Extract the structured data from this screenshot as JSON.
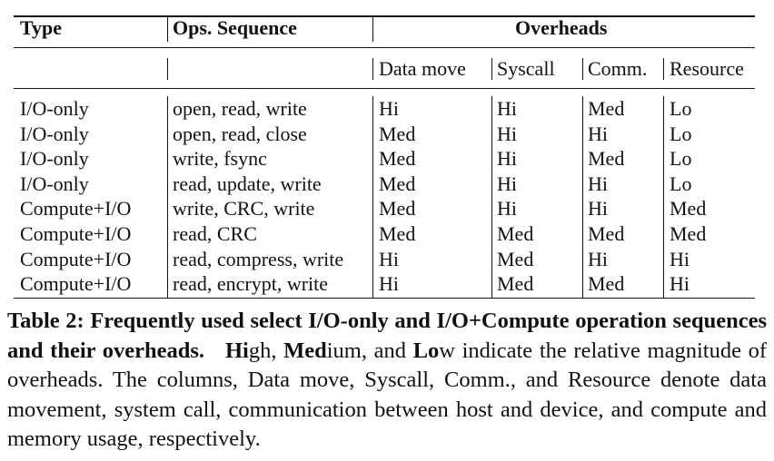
{
  "table": {
    "headers": {
      "type": "Type",
      "ops": "Ops. Sequence",
      "overheads": "Overheads"
    },
    "subheaders": [
      "Data move",
      "Syscall",
      "Comm.",
      "Resource"
    ],
    "rows": [
      {
        "type": "I/O-only",
        "ops": "open, read, write",
        "data_move": "Hi",
        "syscall": "Hi",
        "comm": "Med",
        "resource": "Lo"
      },
      {
        "type": "I/O-only",
        "ops": "open, read, close",
        "data_move": "Med",
        "syscall": "Hi",
        "comm": "Hi",
        "resource": "Lo"
      },
      {
        "type": "I/O-only",
        "ops": "write, fsync",
        "data_move": "Med",
        "syscall": "Hi",
        "comm": "Med",
        "resource": "Lo"
      },
      {
        "type": "I/O-only",
        "ops": "read, update, write",
        "data_move": "Med",
        "syscall": "Hi",
        "comm": "Hi",
        "resource": "Lo"
      },
      {
        "type": "Compute+I/O",
        "ops": "write, CRC, write",
        "data_move": "Med",
        "syscall": "Hi",
        "comm": "Hi",
        "resource": "Med"
      },
      {
        "type": "Compute+I/O",
        "ops": "read, CRC",
        "data_move": "Med",
        "syscall": "Med",
        "comm": "Med",
        "resource": "Med"
      },
      {
        "type": "Compute+I/O",
        "ops": "read, compress, write",
        "data_move": "Hi",
        "syscall": "Med",
        "comm": "Hi",
        "resource": "Hi"
      },
      {
        "type": "Compute+I/O",
        "ops": "read, encrypt, write",
        "data_move": "Hi",
        "syscall": "Med",
        "comm": "Med",
        "resource": "Hi"
      }
    ]
  },
  "caption": {
    "label": "Table 2:",
    "title_bold": "Frequently used select I/O-only and I/O+Compute operation sequences and their overheads.",
    "hi_bold": "Hi",
    "hi_rest": "gh, ",
    "med_bold": "Med",
    "med_rest": "ium, and ",
    "lo_bold": "Lo",
    "rest": "w indicate the relative magnitude of overheads. The columns, Data move, Syscall, Comm., and Resource denote data movement, system call, communication between host and device, and compute and memory usage, respectively."
  }
}
